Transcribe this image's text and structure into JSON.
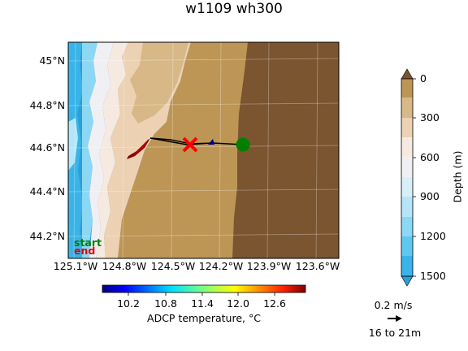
{
  "title": "w1109 wh300",
  "map": {
    "lat_ticks": [
      "45°N",
      "44.8°N",
      "44.6°N",
      "44.4°N",
      "44.2°N"
    ],
    "lon_ticks": [
      "125.1°W",
      "124.8°W",
      "124.5°W",
      "124.2°W",
      "123.9°W",
      "123.6°W"
    ],
    "legend_start": "start",
    "legend_end": "end",
    "start_color": "#008000",
    "end_color": "#ff0000"
  },
  "depth_colorbar": {
    "label": "Depth (m)",
    "ticks": [
      "0",
      "300",
      "600",
      "900",
      "1200",
      "1500"
    ],
    "colors": [
      "#7b5430",
      "#bd9655",
      "#d8b887",
      "#ecd1b2",
      "#f6e9e0",
      "#f0f0f4",
      "#d8eef8",
      "#b4e6f8",
      "#8cd8f4",
      "#5fc8f0",
      "#3ab4e8",
      "#2c9ed8"
    ]
  },
  "temp_colorbar": {
    "label": "ADCP temperature, °C",
    "ticks": [
      "10.2",
      "10.8",
      "11.4",
      "12.0",
      "12.6"
    ]
  },
  "vector_key": {
    "speed": "0.2 m/s",
    "range": "16 to 21m"
  }
}
